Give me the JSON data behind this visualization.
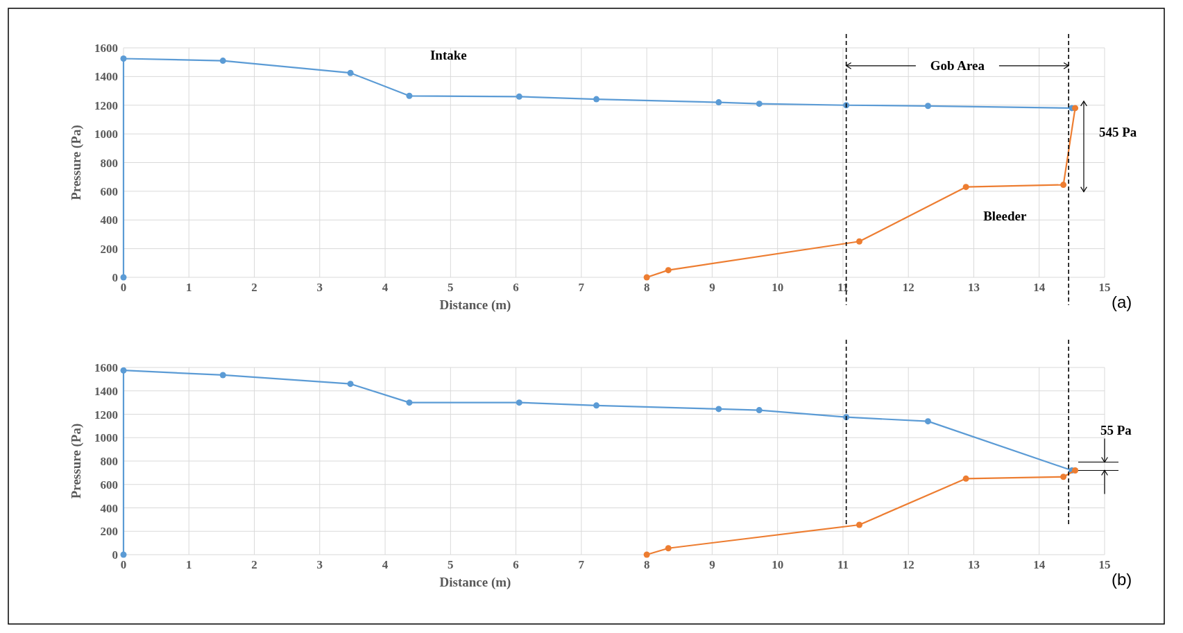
{
  "chart_data": [
    {
      "type": "line",
      "xlabel": "Distance (m)",
      "ylabel": "Pressure (Pa)",
      "xlim": [
        0,
        15
      ],
      "ylim": [
        0,
        1600
      ],
      "xticks": [
        0,
        1,
        2,
        3,
        4,
        5,
        6,
        7,
        8,
        9,
        10,
        11,
        12,
        13,
        14,
        15
      ],
      "yticks": [
        0,
        200,
        400,
        600,
        800,
        1000,
        1200,
        1400,
        1600
      ],
      "grid": true,
      "marker": "circle",
      "line_style": "solid",
      "series": [
        {
          "name": "Intake",
          "color": "#5b9bd5",
          "x": [
            0,
            0,
            1.52,
            3.47,
            4.37,
            6.05,
            7.23,
            9.1,
            9.72,
            11.05,
            12.3,
            14.5
          ],
          "values": [
            0,
            1525,
            1510,
            1425,
            1265,
            1260,
            1242,
            1220,
            1210,
            1200,
            1195,
            1180
          ]
        },
        {
          "name": "Bleeder",
          "color": "#ed7d31",
          "x": [
            8,
            8.33,
            11.25,
            12.88,
            14.37,
            14.55
          ],
          "values": [
            0,
            50,
            250,
            630,
            645,
            1180
          ]
        }
      ],
      "ref_lines": [
        {
          "axis": "x",
          "value": 11.05,
          "color": "#000000",
          "line_style": "dashed"
        },
        {
          "axis": "x",
          "value": 14.45,
          "color": "#000000",
          "line_style": "dashed"
        }
      ],
      "annotations": [
        {
          "text": "Gob Area",
          "x": 14.45,
          "y": 1475
        },
        "545 Pa",
        "(a)"
      ]
    },
    {
      "type": "line",
      "xlabel": "Distance (m)",
      "ylabel": "Pressure (Pa)",
      "xlim": [
        0,
        15
      ],
      "ylim": [
        0,
        1600
      ],
      "xticks": [
        0,
        1,
        2,
        3,
        4,
        5,
        6,
        7,
        8,
        9,
        10,
        11,
        12,
        13,
        14,
        15
      ],
      "yticks": [
        0,
        200,
        400,
        600,
        800,
        1000,
        1200,
        1400,
        1600
      ],
      "grid": true,
      "marker": "circle",
      "line_style": "solid",
      "series": [
        {
          "color": "#5b9bd5",
          "x": [
            0,
            0,
            1.52,
            3.47,
            4.37,
            6.05,
            7.23,
            9.1,
            9.72,
            11.05,
            12.3,
            14.5
          ],
          "values": [
            0,
            1575,
            1535,
            1460,
            1300,
            1300,
            1275,
            1245,
            1235,
            1175,
            1140,
            720
          ]
        },
        {
          "color": "#ed7d31",
          "x": [
            8,
            8.33,
            11.25,
            12.88,
            14.37,
            14.55
          ],
          "values": [
            0,
            55,
            255,
            650,
            665,
            720
          ]
        }
      ],
      "ref_lines": [
        {
          "axis": "x",
          "value": 11.05,
          "color": "#000000",
          "line_style": "dashed"
        },
        {
          "axis": "x",
          "value": 14.45,
          "color": "#000000",
          "line_style": "dashed"
        }
      ],
      "annotations": [
        "55 Pa",
        "(b)"
      ]
    }
  ]
}
